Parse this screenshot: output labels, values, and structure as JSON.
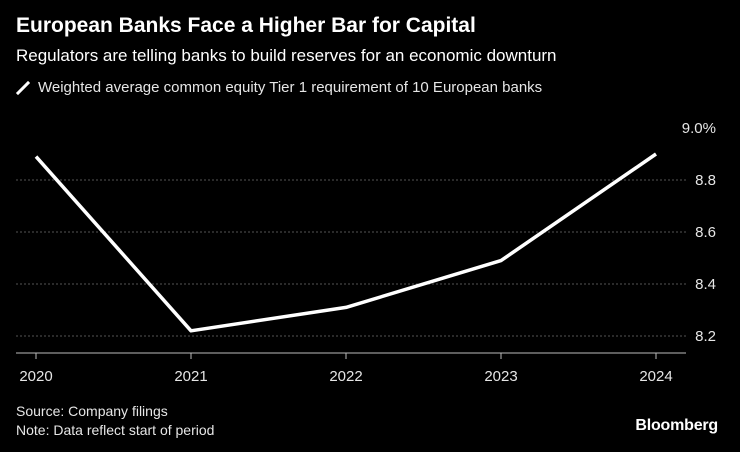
{
  "chart_data": {
    "type": "line",
    "title": "European Banks Face a Higher Bar for Capital",
    "subtitle": "Regulators are telling banks to build reserves for an economic downturn",
    "x": [
      "2020",
      "2021",
      "2022",
      "2023",
      "2024"
    ],
    "series": [
      {
        "name": "Weighted average common equity Tier 1 requirement of 10 European banks",
        "values": [
          8.89,
          8.22,
          8.31,
          8.49,
          8.9
        ],
        "color": "#ffffff"
      }
    ],
    "y_ticks": [
      {
        "value": 9.0,
        "label": "9.0%"
      },
      {
        "value": 8.8,
        "label": "8.8"
      },
      {
        "value": 8.6,
        "label": "8.6"
      },
      {
        "value": 8.4,
        "label": "8.4"
      },
      {
        "value": 8.2,
        "label": "8.2"
      }
    ],
    "ylim": [
      8.15,
      9.0
    ],
    "xlabel": "",
    "ylabel": "",
    "grid": true,
    "legend_position": "top-left"
  },
  "footer": {
    "source": "Source: Company filings",
    "note": "Note: Data reflect start of period",
    "brand": "Bloomberg"
  },
  "colors": {
    "background": "#000000",
    "line": "#ffffff",
    "grid": "#555555",
    "text": "#e6e6e6"
  }
}
